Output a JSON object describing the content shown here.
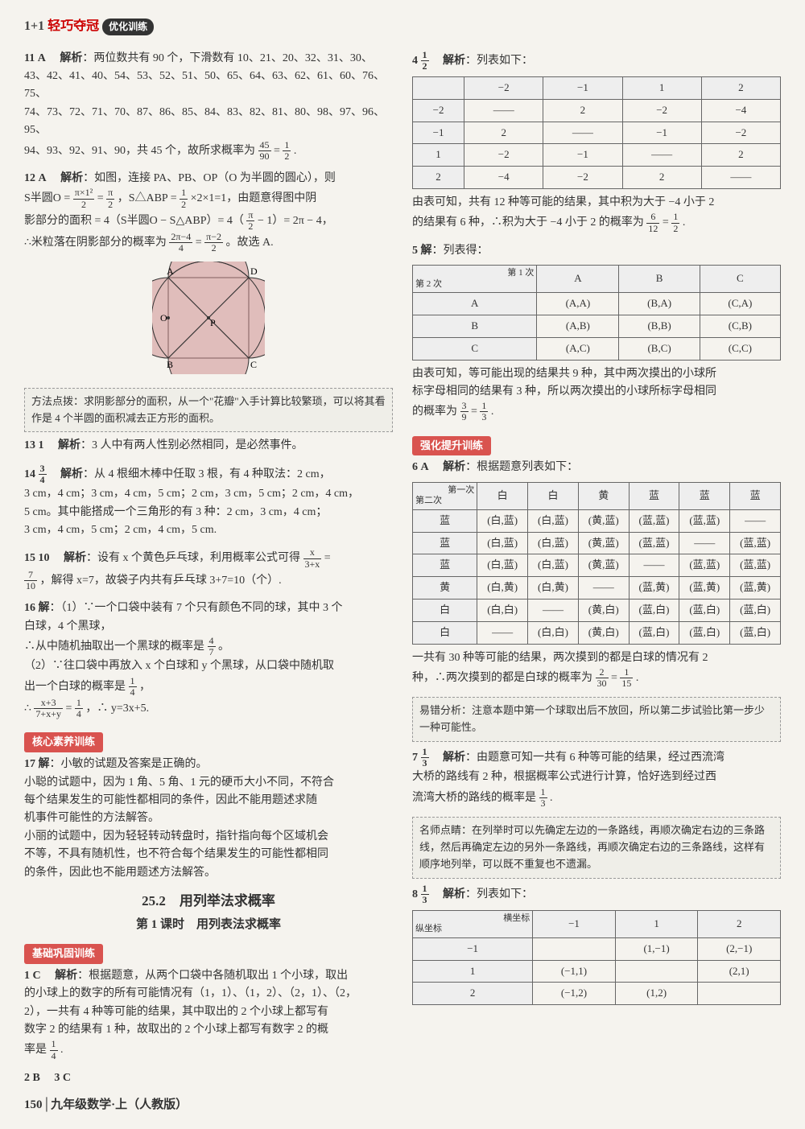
{
  "header": {
    "prefix": "1+1",
    "brand": "轻巧夺冠",
    "badge": "优化训练"
  },
  "left": {
    "q11": {
      "num": "11",
      "ans": "A",
      "label": "解析",
      "l1": "：两位数共有 90 个，下滑数有 10、21、20、32、31、30、",
      "l2": "43、42、41、40、54、53、52、51、50、65、64、63、62、61、60、76、75、",
      "l3": "74、73、72、71、70、87、86、85、84、83、82、81、80、98、97、96、95、",
      "l4": "94、93、92、91、90，共 45 个，故所求概率为",
      "frac": {
        "n": "45",
        "d": "90"
      },
      "eq": " = ",
      "frac2": {
        "n": "1",
        "d": "2"
      },
      "period": "."
    },
    "q12": {
      "num": "12",
      "ans": "A",
      "label": "解析",
      "l1": "：如图，连接 PA、PB、OP（O 为半圆的圆心），则",
      "l2a": "S半圆O = ",
      "frac1": {
        "n": "π×1²",
        "d": "2"
      },
      "eq1": " = ",
      "frac2": {
        "n": "π",
        "d": "2"
      },
      "l2b": "，S△ABP = ",
      "frac3": {
        "n": "1",
        "d": "2"
      },
      "l2c": "×2×1=1，由题意得图中阴",
      "l3a": "影部分的面积 = 4（S半圆O − S△ABP）= 4（",
      "frac4": {
        "n": "π",
        "d": "2"
      },
      "l3b": " − 1）= 2π − 4，",
      "l4a": "∴米粒落在阴影部分的概率为",
      "frac5": {
        "n": "2π−4",
        "d": "4"
      },
      "eq2": " = ",
      "frac6": {
        "n": "π−2",
        "d": "2"
      },
      "l4b": "。故选 A."
    },
    "fig12": {
      "A": "A",
      "B": "B",
      "C": "C",
      "D": "D",
      "O": "O",
      "P": "P"
    },
    "note12": "方法点拨：求阴影部分的面积，从一个\"花瓣\"入手计算比较繁琐，可以将其看作是 4 个半圆的面积减去正方形的面积。",
    "q13": {
      "num": "13",
      "ans": "1",
      "label": "解析",
      "text": "：3 人中有两人性别必然相同，是必然事件。"
    },
    "q14": {
      "num": "14",
      "ans_frac": {
        "n": "3",
        "d": "4"
      },
      "label": "解析",
      "l1": "：从 4 根细木棒中任取 3 根，有 4 种取法：2 cm，",
      "l2": "3 cm，4 cm；3 cm，4 cm，5 cm；2 cm，3 cm，5 cm；2 cm，4 cm，",
      "l3": "5 cm。其中能搭成一个三角形的有 3 种：2 cm，3 cm，4 cm；",
      "l4": "3 cm，4 cm，5 cm；2 cm，4 cm，5 cm."
    },
    "q15": {
      "num": "15",
      "ans": "10",
      "label": "解析",
      "l1": "：设有 x 个黄色乒乓球，利用概率公式可得",
      "frac1": {
        "n": "x",
        "d": "3+x"
      },
      "eq": " =",
      "frac2": {
        "n": "7",
        "d": "10"
      },
      "l2": "，解得 x=7，故袋子内共有乒乓球 3+7=10（个）."
    },
    "q16": {
      "num": "16",
      "label": "解",
      "l1": "：（1）∵一个口袋中装有 7 个只有颜色不同的球，其中 3 个",
      "l2": "白球，4 个黑球，",
      "l3a": "∴从中随机抽取出一个黑球的概率是",
      "frac1": {
        "n": "4",
        "d": "7"
      },
      "l3b": "。",
      "l4": "（2）∵往口袋中再放入 x 个白球和 y 个黑球，从口袋中随机取",
      "l5a": "出一个白球的概率是",
      "frac2": {
        "n": "1",
        "d": "4"
      },
      "l5b": "，",
      "l6a": "∴",
      "frac3": {
        "n": "x+3",
        "d": "7+x+y"
      },
      "eq": " = ",
      "frac4": {
        "n": "1",
        "d": "4"
      },
      "l6b": "，∴ y=3x+5."
    },
    "bar_core": "核心素养训练",
    "q17": {
      "num": "17",
      "label": "解",
      "l1": "：小敏的试题及答案是正确的。",
      "l2": "小聪的试题中，因为 1 角、5 角、1 元的硬币大小不同，不符合",
      "l3": "每个结果发生的可能性都相同的条件，因此不能用题述求随",
      "l4": "机事件可能性的方法解答。",
      "l5": "小丽的试题中，因为轻轻转动转盘时，指针指向每个区域机会",
      "l6": "不等，不具有随机性，也不符合每个结果发生的可能性都相同",
      "l7": "的条件，因此也不能用题述方法解答。"
    },
    "title252": "25.2　用列举法求概率",
    "subtitle1": "第 1 课时　用列表法求概率",
    "bar_base": "基础巩固训练",
    "q1": {
      "num": "1",
      "ans": "C",
      "label": "解析",
      "l1": "：根据题意，从两个口袋中各随机取出 1 个小球，取出",
      "l2": "的小球上的数字的所有可能情况有（1，1）、（1，2）、（2，1）、（2，",
      "l3": "2），一共有 4 种等可能的结果，其中取出的 2 个小球上都写有",
      "l4": "数字 2 的结果有 1 种，故取出的 2 个小球上都写有数字 2 的概",
      "l5a": "率是",
      "frac": {
        "n": "1",
        "d": "4"
      },
      "l5b": "."
    },
    "q2": {
      "num": "2",
      "ans": "B"
    },
    "q3": {
      "num": "3",
      "ans": "C"
    }
  },
  "right": {
    "q4": {
      "num": "4",
      "ans_frac": {
        "n": "1",
        "d": "2"
      },
      "label": "解析",
      "text": "：列表如下：",
      "table": {
        "cols": [
          "",
          "−2",
          "−1",
          "1",
          "2"
        ],
        "rows": [
          [
            "−2",
            "——",
            "2",
            "−2",
            "−4"
          ],
          [
            "−1",
            "2",
            "——",
            "−1",
            "−2"
          ],
          [
            "1",
            "−2",
            "−1",
            "——",
            "2"
          ],
          [
            "2",
            "−4",
            "−2",
            "2",
            "——"
          ]
        ]
      },
      "after1": "由表可知，共有 12 种等可能的结果，其中积为大于 −4 小于 2",
      "after2a": "的结果有 6 种，∴积为大于 −4 小于 2 的概率为",
      "frac1": {
        "n": "6",
        "d": "12"
      },
      "eq": " = ",
      "frac2": {
        "n": "1",
        "d": "2"
      },
      "after2b": "."
    },
    "q5": {
      "num": "5",
      "label": "解",
      "text": "：列表得：",
      "table": {
        "diag": {
          "top": "第 1 次",
          "left": "第 2 次"
        },
        "cols": [
          "A",
          "B",
          "C"
        ],
        "rows": [
          [
            "A",
            "(A,A)",
            "(B,A)",
            "(C,A)"
          ],
          [
            "B",
            "(A,B)",
            "(B,B)",
            "(C,B)"
          ],
          [
            "C",
            "(A,C)",
            "(B,C)",
            "(C,C)"
          ]
        ]
      },
      "after1": "由表可知，等可能出现的结果共 9 种，其中两次摸出的小球所",
      "after2": "标字母相同的结果有 3 种，所以两次摸出的小球所标字母相同",
      "after3a": "的概率为",
      "frac1": {
        "n": "3",
        "d": "9"
      },
      "eq": " = ",
      "frac2": {
        "n": "1",
        "d": "3"
      },
      "after3b": "."
    },
    "bar_strong": "强化提升训练",
    "q6": {
      "num": "6",
      "ans": "A",
      "label": "解析",
      "text": "：根据题意列表如下：",
      "table": {
        "diag": {
          "top": "第一次",
          "left": "第二次"
        },
        "cols": [
          "白",
          "白",
          "黄",
          "蓝",
          "蓝",
          "蓝"
        ],
        "rows": [
          [
            "蓝",
            "(白,蓝)",
            "(白,蓝)",
            "(黄,蓝)",
            "(蓝,蓝)",
            "(蓝,蓝)",
            "——"
          ],
          [
            "蓝",
            "(白,蓝)",
            "(白,蓝)",
            "(黄,蓝)",
            "(蓝,蓝)",
            "——",
            "(蓝,蓝)"
          ],
          [
            "蓝",
            "(白,蓝)",
            "(白,蓝)",
            "(黄,蓝)",
            "——",
            "(蓝,蓝)",
            "(蓝,蓝)"
          ],
          [
            "黄",
            "(白,黄)",
            "(白,黄)",
            "——",
            "(蓝,黄)",
            "(蓝,黄)",
            "(蓝,黄)"
          ],
          [
            "白",
            "(白,白)",
            "——",
            "(黄,白)",
            "(蓝,白)",
            "(蓝,白)",
            "(蓝,白)"
          ],
          [
            "白",
            "——",
            "(白,白)",
            "(黄,白)",
            "(蓝,白)",
            "(蓝,白)",
            "(蓝,白)"
          ]
        ]
      },
      "after1": "一共有 30 种等可能的结果，两次摸到的都是白球的情况有 2",
      "after2a": "种，∴两次摸到的都是白球的概率为",
      "frac1": {
        "n": "2",
        "d": "30"
      },
      "eq": " = ",
      "frac2": {
        "n": "1",
        "d": "15"
      },
      "after2b": "."
    },
    "note6": "易错分析：注意本题中第一个球取出后不放回，所以第二步试验比第一步少一种可能性。",
    "q7": {
      "num": "7",
      "ans_frac": {
        "n": "1",
        "d": "3"
      },
      "label": "解析",
      "l1": "：由题意可知一共有 6 种等可能的结果，经过西流湾",
      "l2": "大桥的路线有 2 种，根据概率公式进行计算，恰好选到经过西",
      "l3a": "流湾大桥的路线的概率是",
      "frac": {
        "n": "1",
        "d": "3"
      },
      "l3b": "."
    },
    "note7": "名师点睛：在列举时可以先确定左边的一条路线，再顺次确定右边的三条路线，然后再确定左边的另外一条路线，再顺次确定右边的三条路线，这样有顺序地列举，可以既不重复也不遗漏。",
    "q8": {
      "num": "8",
      "ans_frac": {
        "n": "1",
        "d": "3"
      },
      "label": "解析",
      "text": "：列表如下：",
      "table": {
        "diag": {
          "top": "横坐标",
          "left": "纵坐标"
        },
        "cols": [
          "−1",
          "1",
          "2"
        ],
        "rows": [
          [
            "−1",
            "",
            "(1,−1)",
            "(2,−1)"
          ],
          [
            "1",
            "(−1,1)",
            "",
            "(2,1)"
          ],
          [
            "2",
            "(−1,2)",
            "(1,2)",
            ""
          ]
        ]
      }
    }
  },
  "footer": {
    "page": "150",
    "text": "│九年级数学·上（人教版）"
  }
}
